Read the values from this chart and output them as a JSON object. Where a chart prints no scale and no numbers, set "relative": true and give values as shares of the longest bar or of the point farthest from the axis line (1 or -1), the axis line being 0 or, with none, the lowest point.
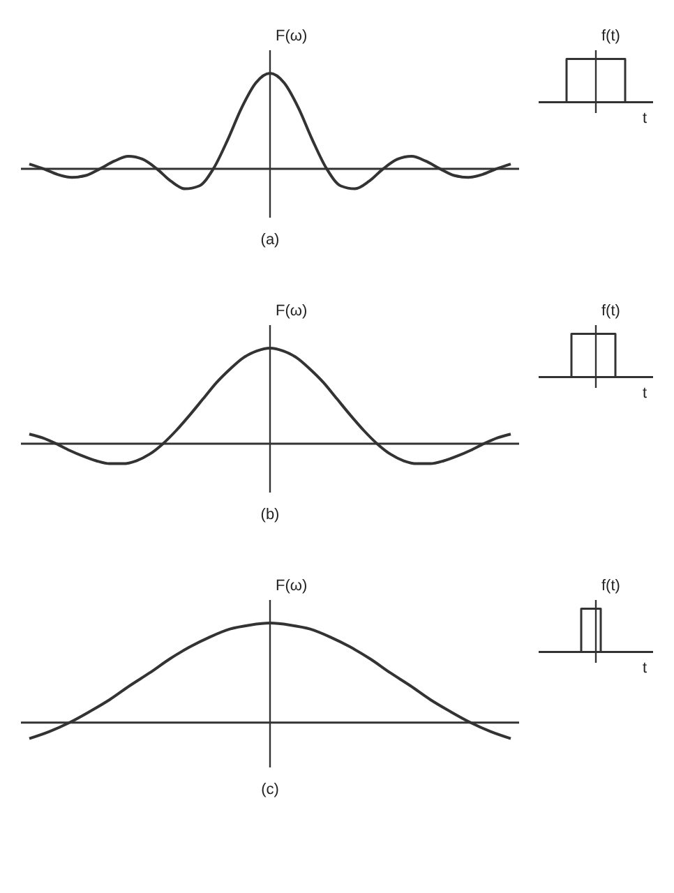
{
  "chart_data": [
    {
      "type": "line",
      "relative": true,
      "ylabel": "F(ω)",
      "annotations": [
        "(a)"
      ],
      "color": "#333333",
      "categories": [
        null,
        null,
        null,
        null,
        null,
        null,
        null,
        null,
        null,
        null,
        null,
        null,
        null,
        null,
        null,
        null,
        null,
        null,
        null,
        null,
        null,
        null,
        null,
        null,
        null,
        null,
        null,
        null,
        null,
        null,
        null,
        null,
        null,
        null,
        null
      ],
      "values": [
        0.05,
        0,
        -0.06,
        -0.09,
        -0.07,
        0,
        0.08,
        0.13,
        0.1,
        0,
        -0.13,
        -0.21,
        -0.18,
        0,
        0.3,
        0.64,
        0.9,
        1,
        0.9,
        0.64,
        0.3,
        0,
        -0.18,
        -0.21,
        -0.13,
        0,
        0.1,
        0.13,
        0.08,
        0,
        -0.07,
        -0.09,
        -0.06,
        0,
        0.05
      ]
    },
    {
      "type": "step",
      "relative": true,
      "ylabel": "f(t)",
      "xlabel": "t",
      "color": "#333333",
      "categories": [
        null,
        null,
        null,
        null,
        null,
        null,
        null,
        null,
        null,
        null,
        null,
        null,
        null,
        null,
        null,
        null,
        null,
        null,
        null,
        null,
        null
      ],
      "values": [
        0,
        0,
        0,
        0,
        1,
        1,
        1,
        1,
        1,
        1,
        1,
        1,
        1,
        1,
        1,
        1,
        0,
        0,
        0,
        0,
        0
      ]
    },
    {
      "type": "line",
      "relative": true,
      "ylabel": "F(ω)",
      "annotations": [
        "(b)"
      ],
      "color": "#333333",
      "categories": [
        null,
        null,
        null,
        null,
        null,
        null,
        null,
        null,
        null,
        null,
        null,
        null,
        null,
        null,
        null,
        null,
        null,
        null,
        null,
        null,
        null,
        null,
        null,
        null,
        null,
        null,
        null,
        null,
        null,
        null,
        null,
        null,
        null,
        null,
        null,
        null,
        null
      ],
      "values": [
        0.1,
        0.06,
        0,
        -0.07,
        -0.13,
        -0.18,
        -0.21,
        -0.21,
        -0.18,
        -0.11,
        0,
        0.14,
        0.3,
        0.47,
        0.64,
        0.78,
        0.9,
        0.97,
        1,
        0.97,
        0.9,
        0.78,
        0.64,
        0.47,
        0.3,
        0.14,
        0,
        -0.11,
        -0.18,
        -0.21,
        -0.21,
        -0.18,
        -0.13,
        -0.07,
        0,
        0.06,
        0.1
      ]
    },
    {
      "type": "step",
      "relative": true,
      "ylabel": "f(t)",
      "xlabel": "t",
      "color": "#333333",
      "categories": [
        null,
        null,
        null,
        null,
        null,
        null,
        null,
        null,
        null,
        null,
        null,
        null,
        null,
        null,
        null,
        null,
        null,
        null,
        null,
        null,
        null
      ],
      "values": [
        0,
        0,
        0,
        0,
        0,
        1,
        1,
        1,
        1,
        1,
        1,
        1,
        1,
        1,
        0,
        0,
        0,
        0,
        0,
        0,
        0
      ]
    },
    {
      "type": "line",
      "relative": true,
      "ylabel": "F(ω)",
      "annotations": [
        "(c)"
      ],
      "color": "#333333",
      "categories": [
        null,
        null,
        null,
        null,
        null,
        null,
        null,
        null,
        null,
        null,
        null,
        null,
        null,
        null,
        null,
        null,
        null,
        null,
        null,
        null,
        null,
        null,
        null,
        null,
        null
      ],
      "values": [
        -0.16,
        -0.09,
        0,
        0.11,
        0.23,
        0.37,
        0.5,
        0.64,
        0.76,
        0.86,
        0.94,
        0.98,
        1,
        0.98,
        0.94,
        0.86,
        0.76,
        0.64,
        0.5,
        0.37,
        0.23,
        0.11,
        0,
        -0.09,
        -0.16
      ]
    },
    {
      "type": "step",
      "relative": true,
      "ylabel": "f(t)",
      "xlabel": "t",
      "color": "#333333",
      "categories": [
        null,
        null,
        null,
        null,
        null,
        null,
        null,
        null,
        null,
        null,
        null,
        null,
        null,
        null,
        null,
        null,
        null,
        null,
        null,
        null,
        null
      ],
      "values": [
        0,
        0,
        0,
        0,
        0,
        0,
        0,
        1,
        1,
        1,
        1,
        0,
        0,
        0,
        0,
        0,
        0,
        0,
        0,
        0,
        0
      ]
    }
  ]
}
